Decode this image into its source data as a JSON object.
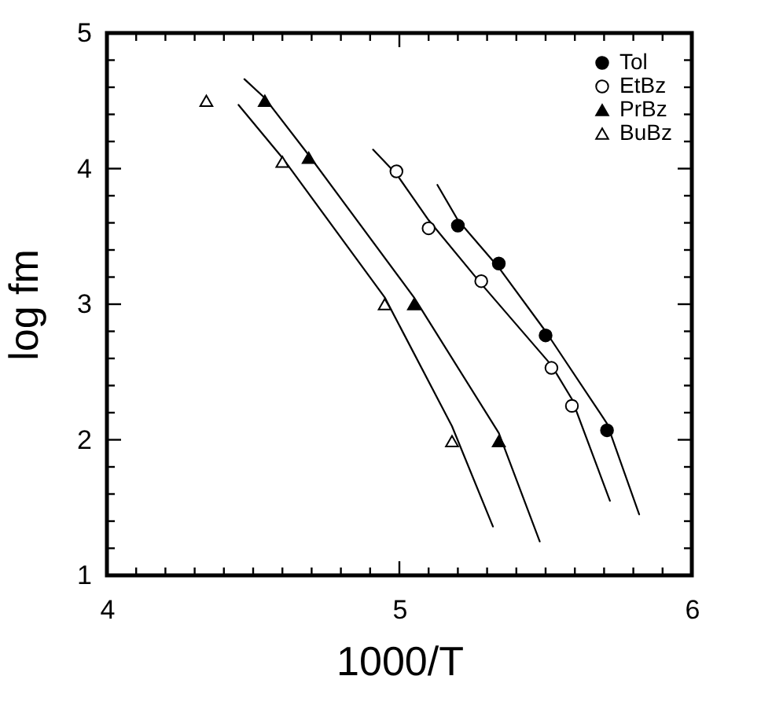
{
  "chart_data": {
    "type": "scatter",
    "xlabel": "1000/T",
    "ylabel": "log fm",
    "xlim": [
      4,
      6
    ],
    "ylim": [
      1,
      5
    ],
    "xticks": [
      4,
      {
        "value": 4.1,
        "label": null
      },
      {
        "value": 4.2,
        "label": null
      },
      {
        "value": 4.3,
        "label": null
      },
      {
        "value": 4.4,
        "label": null
      },
      {
        "value": 4.5,
        "label": null
      },
      {
        "value": 4.6,
        "label": null
      },
      {
        "value": 4.7,
        "label": null
      },
      {
        "value": 4.8,
        "label": null
      },
      {
        "value": 4.9,
        "label": null
      },
      5,
      {
        "value": 5.1,
        "label": null
      },
      {
        "value": 5.2,
        "label": null
      },
      {
        "value": 5.3,
        "label": null
      },
      {
        "value": 5.4,
        "label": null
      },
      {
        "value": 5.5,
        "label": null
      },
      {
        "value": 5.6,
        "label": null
      },
      {
        "value": 5.7,
        "label": null
      },
      {
        "value": 5.8,
        "label": null
      },
      {
        "value": 5.9,
        "label": null
      },
      6
    ],
    "yticks": [
      1,
      {
        "value": 1.2,
        "label": null
      },
      {
        "value": 1.4,
        "label": null
      },
      {
        "value": 1.6,
        "label": null
      },
      {
        "value": 1.8,
        "label": null
      },
      2,
      {
        "value": 2.2,
        "label": null
      },
      {
        "value": 2.4,
        "label": null
      },
      {
        "value": 2.6,
        "label": null
      },
      {
        "value": 2.8,
        "label": null
      },
      3,
      {
        "value": 3.2,
        "label": null
      },
      {
        "value": 3.4,
        "label": null
      },
      {
        "value": 3.6,
        "label": null
      },
      {
        "value": 3.8,
        "label": null
      },
      4,
      {
        "value": 4.2,
        "label": null
      },
      {
        "value": 4.4,
        "label": null
      },
      {
        "value": 4.6,
        "label": null
      },
      {
        "value": 4.8,
        "label": null
      },
      5
    ],
    "grid": false,
    "legend": "top right",
    "series": [
      {
        "name": "Tol",
        "color": "#000000",
        "marker": "circle",
        "x": [
          5.2,
          5.34,
          5.5,
          5.71
        ],
        "values": [
          3.58,
          3.3,
          2.77,
          2.07
        ]
      },
      {
        "name": "EtBz",
        "color": "#ffffff",
        "marker": "circle",
        "x": [
          4.99,
          5.1,
          5.28,
          5.52,
          5.59
        ],
        "values": [
          3.98,
          3.56,
          3.17,
          2.53,
          2.25
        ]
      },
      {
        "name": "PrBz",
        "color": "#000000",
        "marker": "triangle",
        "x": [
          4.54,
          4.69,
          5.05,
          5.34
        ],
        "values": [
          4.5,
          4.08,
          3.0,
          1.99
        ]
      },
      {
        "name": "BuBz",
        "color": "#ffffff",
        "marker": "triangle",
        "x": [
          4.34,
          4.6,
          4.95,
          5.18
        ],
        "values": [
          4.5,
          4.05,
          3.0,
          1.99
        ]
      },
      {
        "type": "line",
        "color": "#000000",
        "marker": "none",
        "x": [
          5.13,
          5.2,
          5.34,
          5.5,
          5.71,
          5.82
        ],
        "values": [
          3.88,
          3.62,
          3.27,
          2.8,
          2.12,
          1.45
        ]
      },
      {
        "type": "line",
        "color": "#000000",
        "marker": "none",
        "x": [
          4.91,
          4.99,
          5.1,
          5.28,
          5.52,
          5.59,
          5.72
        ],
        "values": [
          4.14,
          3.96,
          3.62,
          3.15,
          2.55,
          2.3,
          1.55
        ]
      },
      {
        "type": "line",
        "color": "#000000",
        "marker": "none",
        "x": [
          4.47,
          4.54,
          4.69,
          5.05,
          5.34,
          5.48
        ],
        "values": [
          4.66,
          4.52,
          4.1,
          3.05,
          2.05,
          1.25
        ]
      },
      {
        "type": "line",
        "color": "#000000",
        "marker": "none",
        "x": [
          4.45,
          4.6,
          4.95,
          5.18,
          5.32
        ],
        "values": [
          4.47,
          4.08,
          3.05,
          2.1,
          1.36
        ]
      }
    ]
  }
}
